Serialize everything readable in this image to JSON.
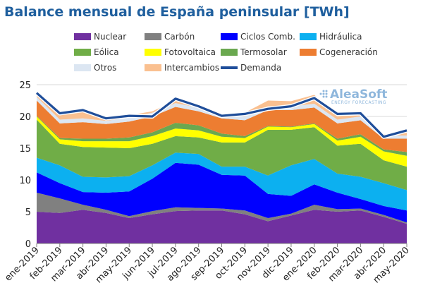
{
  "chart_data": {
    "type": "area",
    "title": "Balance mensual de España peninsular [TWh]",
    "xlabel": "",
    "ylabel": "",
    "ylim": [
      0,
      25
    ],
    "yticks": [
      0,
      5,
      10,
      15,
      20,
      25
    ],
    "grid": true,
    "legend_position": "top",
    "categories": [
      "ene-2019",
      "feb-2019",
      "mar-2019",
      "abr-2019",
      "may-2019",
      "jun-2019",
      "jul-2019",
      "ago-2019",
      "sep-2019",
      "oct-2019",
      "nov-2019",
      "dic-2019",
      "ene-2020",
      "feb-2020",
      "mar-2020",
      "abr-2020",
      "may-2020"
    ],
    "series": [
      {
        "name": "Nuclear",
        "color": "#7030a0",
        "values": [
          5.0,
          4.8,
          5.3,
          4.8,
          4.0,
          4.6,
          5.1,
          5.2,
          5.2,
          4.6,
          3.5,
          4.4,
          5.3,
          5.0,
          5.2,
          4.2,
          3.1
        ]
      },
      {
        "name": "Carbón",
        "color": "#808080",
        "values": [
          3.0,
          2.3,
          0.8,
          0.5,
          0.3,
          0.5,
          0.6,
          0.4,
          0.3,
          0.6,
          0.5,
          0.3,
          0.8,
          0.4,
          0.3,
          0.3,
          0.2
        ]
      },
      {
        "name": "Ciclos Comb.",
        "color": "#0000ff",
        "values": [
          3.2,
          2.4,
          2.0,
          2.7,
          3.9,
          5.1,
          7.0,
          6.8,
          5.3,
          5.5,
          3.8,
          2.8,
          3.2,
          2.6,
          1.5,
          1.4,
          1.9
        ]
      },
      {
        "name": "Hidráulica",
        "color": "#0cb0f0",
        "values": [
          2.3,
          2.8,
          2.4,
          2.4,
          2.4,
          2.1,
          1.6,
          1.7,
          1.3,
          1.4,
          2.9,
          4.8,
          4.0,
          3.0,
          3.5,
          3.6,
          3.2
        ]
      },
      {
        "name": "Eólica",
        "color": "#70ad47",
        "values": [
          6.0,
          3.4,
          4.7,
          4.7,
          4.4,
          3.4,
          2.6,
          2.6,
          3.8,
          3.8,
          7.2,
          5.6,
          5.0,
          4.4,
          5.2,
          3.6,
          3.7
        ]
      },
      {
        "name": "Fotovoltaica",
        "color": "#ffff00",
        "values": [
          0.5,
          0.7,
          0.9,
          1.0,
          1.1,
          1.2,
          1.2,
          1.1,
          0.9,
          0.7,
          0.5,
          0.4,
          0.5,
          0.8,
          1.1,
          1.4,
          1.7
        ]
      },
      {
        "name": "Termosolar",
        "color": "#6aa84f",
        "values": [
          0.1,
          0.2,
          0.4,
          0.4,
          0.6,
          0.6,
          0.9,
          0.8,
          0.5,
          0.3,
          0.1,
          0.1,
          0.1,
          0.3,
          0.4,
          0.3,
          0.6
        ]
      },
      {
        "name": "Cogeneración",
        "color": "#ed7d31",
        "values": [
          2.4,
          2.3,
          2.6,
          2.3,
          2.5,
          2.5,
          2.5,
          2.2,
          2.4,
          2.5,
          2.5,
          2.6,
          2.5,
          2.4,
          2.2,
          1.7,
          2.1
        ]
      },
      {
        "name": "Otros",
        "color": "#dce6f2",
        "values": [
          0.6,
          0.6,
          0.6,
          0.5,
          0.6,
          0.6,
          0.6,
          0.6,
          0.6,
          0.6,
          0.6,
          0.6,
          0.6,
          0.6,
          0.6,
          0.5,
          0.5
        ]
      },
      {
        "name": "Intercambios",
        "color": "#fac090",
        "values": [
          0.4,
          0.7,
          1.0,
          0.5,
          0.4,
          0.2,
          0.4,
          0.3,
          0.0,
          0.6,
          0.9,
          0.8,
          1.4,
          0.5,
          0.7,
          0.2,
          0.7
        ]
      }
    ],
    "demanda": {
      "name": "Demanda",
      "color": "#1f4e9a",
      "values": [
        23.7,
        20.5,
        21.0,
        19.7,
        20.1,
        20.0,
        22.8,
        21.6,
        20.1,
        20.4,
        21.2,
        21.6,
        22.9,
        20.4,
        20.5,
        16.8,
        17.8
      ]
    }
  },
  "watermark": {
    "brand": "AleaSoft",
    "tagline": "ENERGY FORECASTING"
  }
}
